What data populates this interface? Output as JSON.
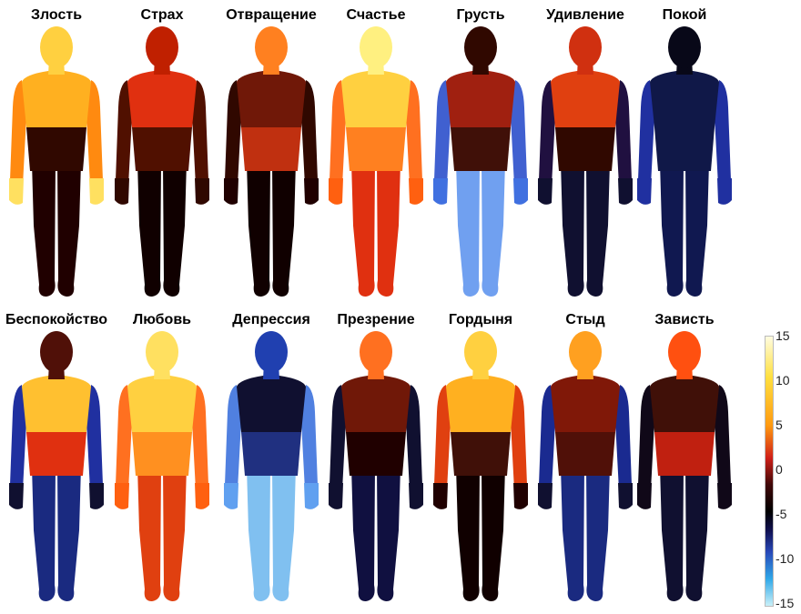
{
  "figures": [
    {
      "label": "Злость",
      "colors": {
        "head": "#ffd040",
        "chest": "#ffb020",
        "belly": "#300800",
        "arms": "#ff8a10",
        "hands": "#ffe060",
        "legs": "#200000"
      }
    },
    {
      "label": "Страх",
      "colors": {
        "head": "#c02000",
        "chest": "#e03010",
        "belly": "#501000",
        "arms": "#501000",
        "hands": "#300800",
        "legs": "#100000"
      }
    },
    {
      "label": "Отвращение",
      "colors": {
        "head": "#ff8020",
        "chest": "#701808",
        "belly": "#c03010",
        "arms": "#300800",
        "hands": "#200000",
        "legs": "#100000"
      }
    },
    {
      "label": "Счастье",
      "colors": {
        "head": "#fff080",
        "chest": "#ffd040",
        "belly": "#ff8020",
        "arms": "#ff7020",
        "hands": "#ff6010",
        "legs": "#e03010"
      }
    },
    {
      "label": "Грусть",
      "colors": {
        "head": "#300800",
        "chest": "#a02010",
        "belly": "#401008",
        "arms": "#4060d0",
        "hands": "#4070e0",
        "legs": "#70a0f0"
      }
    },
    {
      "label": "Удивление",
      "colors": {
        "head": "#d03010",
        "chest": "#e04010",
        "belly": "#300800",
        "arms": "#201040",
        "hands": "#101030",
        "legs": "#101030"
      }
    },
    {
      "label": "Покой",
      "colors": {
        "head": "#080818",
        "chest": "#101848",
        "belly": "#101848",
        "arms": "#2030a0",
        "hands": "#2030a0",
        "legs": "#101850"
      }
    },
    {
      "label": "Беспокойство",
      "colors": {
        "head": "#501008",
        "chest": "#ffc030",
        "belly": "#e03010",
        "arms": "#2030a0",
        "hands": "#101030",
        "legs": "#1a2a80"
      }
    },
    {
      "label": "Любовь",
      "colors": {
        "head": "#ffe060",
        "chest": "#ffd040",
        "belly": "#ff9020",
        "arms": "#ff7020",
        "hands": "#ff6010",
        "legs": "#e04010"
      }
    },
    {
      "label": "Депрессия",
      "colors": {
        "head": "#2040b0",
        "chest": "#101030",
        "belly": "#203080",
        "arms": "#5080e0",
        "hands": "#60a0f0",
        "legs": "#80c0f0"
      }
    },
    {
      "label": "Презрение",
      "colors": {
        "head": "#ff7020",
        "chest": "#701808",
        "belly": "#200000",
        "arms": "#101030",
        "hands": "#101030",
        "legs": "#101040"
      }
    },
    {
      "label": "Гордыня",
      "colors": {
        "head": "#ffd040",
        "chest": "#ffb020",
        "belly": "#401008",
        "arms": "#e04010",
        "hands": "#200000",
        "legs": "#100000"
      }
    },
    {
      "label": "Стыд",
      "colors": {
        "head": "#ffa020",
        "chest": "#801808",
        "belly": "#501008",
        "arms": "#1a2a90",
        "hands": "#101030",
        "legs": "#1a2a80"
      }
    },
    {
      "label": "Зависть",
      "colors": {
        "head": "#ff5010",
        "chest": "#401008",
        "belly": "#c02010",
        "arms": "#100818",
        "hands": "#100818",
        "legs": "#101030"
      }
    }
  ],
  "colorbar": {
    "ticks": [
      "15",
      "10",
      "5",
      "0",
      "-5",
      "-10",
      "-15"
    ],
    "range": [
      -15,
      15
    ]
  }
}
